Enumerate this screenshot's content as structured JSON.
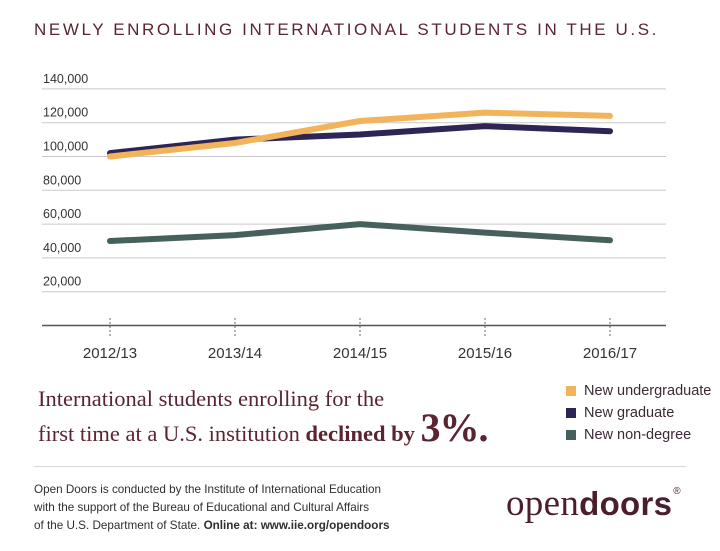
{
  "title": "NEWLY ENROLLING INTERNATIONAL STUDENTS IN THE U.S.",
  "chart_data": {
    "type": "line",
    "categories": [
      "2012/13",
      "2013/14",
      "2014/15",
      "2015/16",
      "2016/17"
    ],
    "yticks": [
      "20,000",
      "40,000",
      "60,000",
      "80,000",
      "100,000",
      "120,000",
      "140,000"
    ],
    "ylim": [
      0,
      140000
    ],
    "grid": true,
    "legend_position": "bottom-right",
    "series": [
      {
        "name": "New undergraduate",
        "color": "#f2b45a",
        "values": [
          100000,
          108000,
          121000,
          126000,
          124000
        ]
      },
      {
        "name": "New graduate",
        "color": "#2e2456",
        "values": [
          102000,
          110000,
          113000,
          118000,
          115000
        ]
      },
      {
        "name": "New non-degree",
        "color": "#46615c",
        "values": [
          50000,
          53500,
          60000,
          55000,
          50500
        ]
      }
    ]
  },
  "headline": {
    "line1": "International students enrolling for the",
    "line2": "first time at a U.S. institution",
    "emphasis": "declined by",
    "figure": "3%."
  },
  "footer": {
    "line1": "Open Doors is conducted by the Institute of International Education",
    "line2": "with the support of the Bureau of Educational and Cultural Affairs",
    "line3": "of the U.S. Department of State.",
    "line3_bold": "Online at: www.iie.org/opendoors"
  },
  "logo": {
    "part1": "open",
    "part2": "doors",
    "mark": "®"
  }
}
